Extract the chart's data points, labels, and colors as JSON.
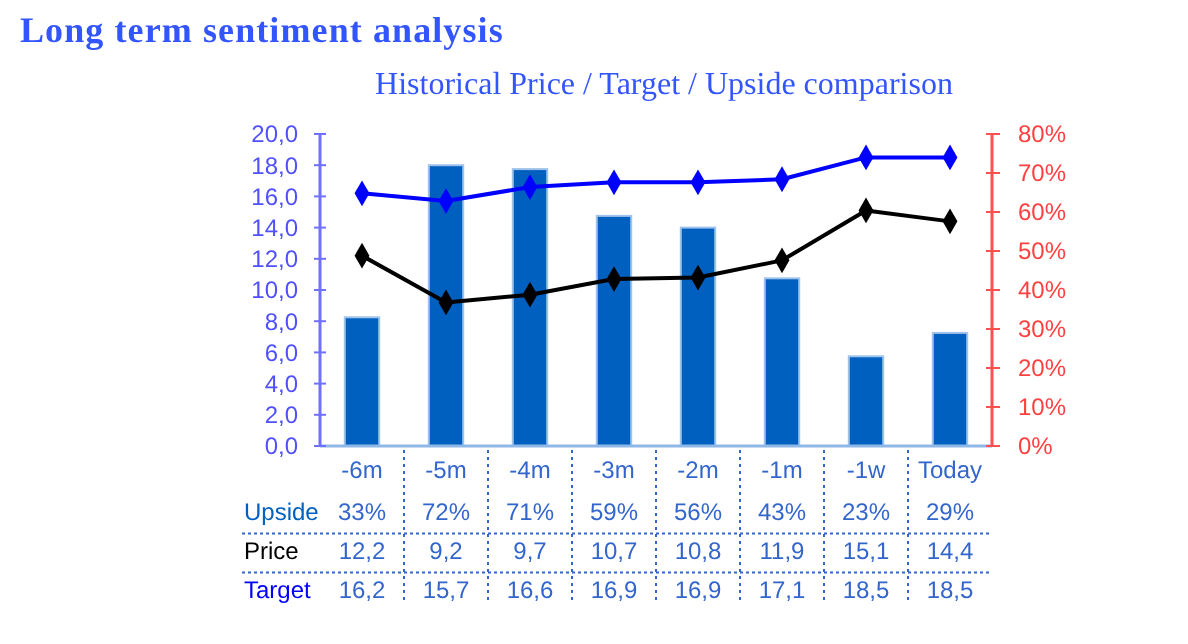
{
  "chart_data": {
    "type": "bar",
    "title": "Long term sentiment analysis",
    "subtitle": "Historical Price / Target / Upside comparison",
    "categories": [
      "-6m",
      "-5m",
      "-4m",
      "-3m",
      "-2m",
      "-1m",
      "-1w",
      "Today"
    ],
    "series": [
      {
        "name": "Upside",
        "axis": "y2",
        "color": "#0060c0",
        "values": [
          33,
          72,
          71,
          59,
          56,
          43,
          23,
          29
        ],
        "value_labels": [
          "33%",
          "72%",
          "71%",
          "59%",
          "56%",
          "43%",
          "23%",
          "29%"
        ]
      },
      {
        "name": "Price",
        "type": "line",
        "color": "#000000",
        "values": [
          12.2,
          9.2,
          9.7,
          10.7,
          10.8,
          11.9,
          15.1,
          14.4
        ],
        "value_labels": [
          "12,2",
          "9,2",
          "9,7",
          "10,7",
          "10,8",
          "11,9",
          "15,1",
          "14,4"
        ]
      },
      {
        "name": "Target",
        "type": "line",
        "color": "#0000ff",
        "values": [
          16.2,
          15.7,
          16.6,
          16.9,
          16.9,
          17.1,
          18.5,
          18.5
        ],
        "value_labels": [
          "16,2",
          "15,7",
          "16,6",
          "16,9",
          "16,9",
          "17,1",
          "18,5",
          "18,5"
        ]
      }
    ],
    "ylim": [
      0,
      20
    ],
    "yticks": [
      {
        "value": 0,
        "label": "0,0"
      },
      {
        "value": 2,
        "label": "2,0"
      },
      {
        "value": 4,
        "label": "4,0"
      },
      {
        "value": 6,
        "label": "6,0"
      },
      {
        "value": 8,
        "label": "8,0"
      },
      {
        "value": 10,
        "label": "10,0"
      },
      {
        "value": 12,
        "label": "12,0"
      },
      {
        "value": 14,
        "label": "14,0"
      },
      {
        "value": 16,
        "label": "16,0"
      },
      {
        "value": 18,
        "label": "18,0"
      },
      {
        "value": 20,
        "label": "20,0"
      }
    ],
    "y2lim": [
      0,
      80
    ],
    "y2ticks": [
      {
        "value": 0,
        "label": "0%"
      },
      {
        "value": 10,
        "label": "10%"
      },
      {
        "value": 20,
        "label": "20%"
      },
      {
        "value": 30,
        "label": "30%"
      },
      {
        "value": 40,
        "label": "40%"
      },
      {
        "value": 50,
        "label": "50%"
      },
      {
        "value": 60,
        "label": "60%"
      },
      {
        "value": 70,
        "label": "70%"
      },
      {
        "value": 80,
        "label": "80%"
      }
    ],
    "marker": "diamond"
  }
}
